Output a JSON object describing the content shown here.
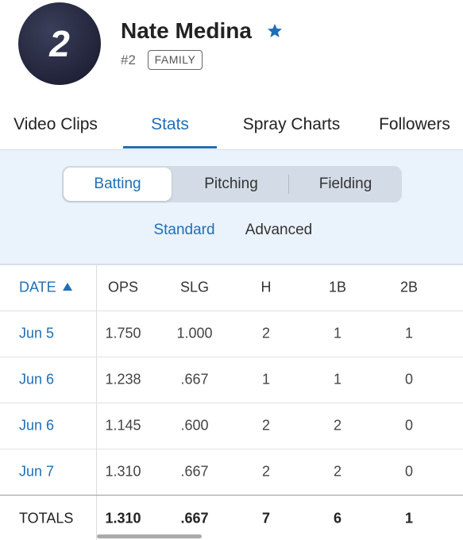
{
  "header": {
    "avatar_number": "2",
    "name": "Nate Medina",
    "number": "#2",
    "badge": "FAMILY"
  },
  "tabs": [
    "Video Clips",
    "Stats",
    "Spray Charts",
    "Followers"
  ],
  "segments": [
    "Batting",
    "Pitching",
    "Fielding"
  ],
  "subtabs": [
    "Standard",
    "Advanced"
  ],
  "table": {
    "columns": [
      "DATE",
      "OPS",
      "SLG",
      "H",
      "1B",
      "2B"
    ],
    "rows": [
      [
        "Jun 5",
        "1.750",
        "1.000",
        "2",
        "1",
        "1"
      ],
      [
        "Jun 6",
        "1.238",
        ".667",
        "1",
        "1",
        "0"
      ],
      [
        "Jun 6",
        "1.145",
        ".600",
        "2",
        "2",
        "0"
      ],
      [
        "Jun 7",
        "1.310",
        ".667",
        "2",
        "2",
        "0"
      ]
    ],
    "totals": [
      "TOTALS",
      "1.310",
      ".667",
      "7",
      "6",
      "1"
    ]
  }
}
